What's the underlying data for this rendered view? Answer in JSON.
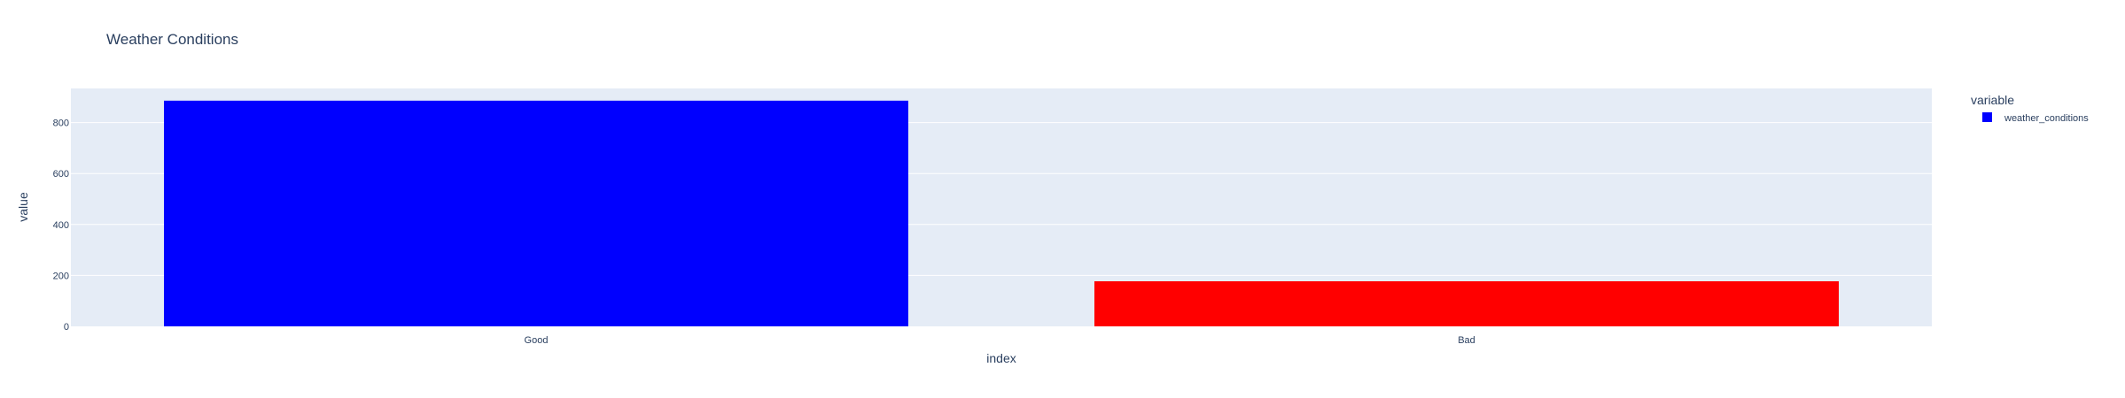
{
  "chart_data": {
    "type": "bar",
    "title": "Weather Conditions",
    "xlabel": "index",
    "ylabel": "value",
    "categories": [
      "Good",
      "Bad"
    ],
    "series": [
      {
        "name": "weather_conditions",
        "values": [
          886,
          177
        ],
        "colors": [
          "#0000ff",
          "#ff0000"
        ]
      }
    ],
    "ylim": [
      0,
      934
    ],
    "yticks": [
      0,
      200,
      400,
      600,
      800
    ],
    "grid": true,
    "legend": {
      "title": "variable",
      "position": "top-right"
    },
    "colors": {
      "plot_bg": "#e5ecf6",
      "grid": "#ffffff",
      "text": "#2a3f5f"
    }
  }
}
